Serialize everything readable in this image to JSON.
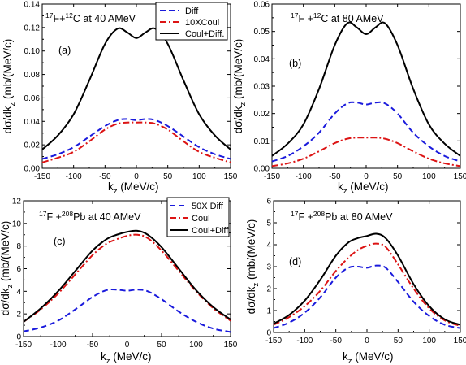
{
  "figure": {
    "ylabel": "dσ/dk",
    "ysub": "z",
    "yunit": " (mb/(MeV/c)",
    "xlabel": "k",
    "xsub": "z",
    "xunit": " (MeV/c)"
  },
  "colors": {
    "diff": "#1a1adc",
    "coul": "#dc1414",
    "sum": "#000000"
  },
  "chart_data": [
    {
      "type": "line",
      "panel_label": "(a)",
      "title_parts": {
        "a": "17",
        "b": "F+",
        "c": "12",
        "d": "C at 40 AMeV"
      },
      "xlim": [
        -150,
        150
      ],
      "ylim": [
        0,
        0.14
      ],
      "xticks": [
        -150,
        -100,
        -50,
        0,
        50,
        100,
        150
      ],
      "yticks": [
        0.0,
        0.02,
        0.04,
        0.06,
        0.08,
        0.1,
        0.12,
        0.14
      ],
      "ytick_labels": [
        "0.00",
        "0.02",
        "0.04",
        "0.06",
        "0.08",
        "0.10",
        "0.12",
        "0.14"
      ],
      "legend": "top-right",
      "x": [
        -150,
        -125,
        -100,
        -75,
        -50,
        -30,
        -15,
        0,
        15,
        30,
        50,
        75,
        100,
        125,
        150
      ],
      "series": [
        {
          "name": "Diff",
          "style": "diff",
          "values": [
            0.008,
            0.012,
            0.018,
            0.027,
            0.036,
            0.041,
            0.042,
            0.041,
            0.042,
            0.041,
            0.036,
            0.027,
            0.018,
            0.012,
            0.008
          ]
        },
        {
          "name": "10XCoul",
          "style": "coul",
          "values": [
            0.005,
            0.009,
            0.014,
            0.023,
            0.033,
            0.038,
            0.039,
            0.039,
            0.039,
            0.038,
            0.033,
            0.023,
            0.014,
            0.009,
            0.005
          ]
        },
        {
          "name": "Coul+Diff.",
          "style": "sum",
          "values": [
            0.016,
            0.028,
            0.046,
            0.075,
            0.106,
            0.119,
            0.116,
            0.111,
            0.116,
            0.119,
            0.106,
            0.075,
            0.046,
            0.028,
            0.016
          ]
        }
      ]
    },
    {
      "type": "line",
      "panel_label": "(b)",
      "title_parts": {
        "a": "17",
        "b": "F +",
        "c": "12",
        "d": "C at 80 AMeV"
      },
      "xlim": [
        -150,
        150
      ],
      "ylim": [
        0,
        0.06
      ],
      "xticks": [
        -150,
        -100,
        -50,
        0,
        50,
        100,
        150
      ],
      "yticks": [
        0.0,
        0.01,
        0.02,
        0.03,
        0.04,
        0.05,
        0.06
      ],
      "ytick_labels": [
        "0.00",
        "0.01",
        "0.02",
        "0.03",
        "0.04",
        "0.05",
        "0.06"
      ],
      "legend": "none",
      "x": [
        -150,
        -125,
        -100,
        -75,
        -50,
        -30,
        -15,
        0,
        15,
        30,
        50,
        75,
        100,
        125,
        150
      ],
      "series": [
        {
          "style": "diff",
          "values": [
            0.0025,
            0.0045,
            0.008,
            0.013,
            0.02,
            0.0237,
            0.024,
            0.0233,
            0.024,
            0.0237,
            0.02,
            0.013,
            0.008,
            0.0045,
            0.0025
          ]
        },
        {
          "style": "coul",
          "values": [
            0.0008,
            0.0018,
            0.0035,
            0.0062,
            0.0092,
            0.0108,
            0.0112,
            0.0112,
            0.0112,
            0.0108,
            0.0092,
            0.0062,
            0.0035,
            0.0018,
            0.0008
          ]
        },
        {
          "style": "sum",
          "values": [
            0.0045,
            0.009,
            0.016,
            0.029,
            0.045,
            0.053,
            0.0515,
            0.049,
            0.0515,
            0.053,
            0.045,
            0.029,
            0.016,
            0.009,
            0.0045
          ]
        }
      ]
    },
    {
      "type": "line",
      "panel_label": "(c)",
      "title_parts": {
        "a": "17",
        "b": "F +",
        "c": "208",
        "d": "Pb at 40 AMeV"
      },
      "xlim": [
        -150,
        150
      ],
      "ylim": [
        0,
        12
      ],
      "xticks": [
        -150,
        -100,
        -50,
        0,
        50,
        100,
        150
      ],
      "yticks": [
        0,
        2,
        4,
        6,
        8,
        10,
        12
      ],
      "ytick_labels": [
        "0",
        "2",
        "4",
        "6",
        "8",
        "10",
        "12"
      ],
      "legend": "top-right",
      "x": [
        -150,
        -125,
        -100,
        -75,
        -50,
        -30,
        -15,
        0,
        15,
        30,
        50,
        75,
        100,
        125,
        150
      ],
      "series": [
        {
          "name": "50X Diff",
          "style": "diff",
          "values": [
            0.45,
            0.8,
            1.4,
            2.4,
            3.5,
            4.1,
            4.15,
            4.05,
            4.15,
            4.0,
            3.3,
            2.2,
            1.3,
            0.7,
            0.4
          ]
        },
        {
          "name": "Coul",
          "style": "coul",
          "values": [
            1.3,
            2.4,
            3.8,
            5.5,
            7.2,
            8.2,
            8.6,
            8.9,
            9.0,
            8.7,
            7.6,
            5.8,
            4.0,
            2.5,
            1.4
          ]
        },
        {
          "name": "Coul+Diff.",
          "style": "sum",
          "values": [
            1.3,
            2.5,
            4.0,
            5.8,
            7.6,
            8.6,
            9.0,
            9.25,
            9.35,
            9.0,
            7.9,
            6.0,
            4.1,
            2.6,
            1.5
          ]
        }
      ]
    },
    {
      "type": "line",
      "panel_label": "(d)",
      "title_parts": {
        "a": "17",
        "b": "F +",
        "c": "208",
        "d": "Pb at 80 AMeV"
      },
      "xlim": [
        -150,
        150
      ],
      "ylim": [
        0,
        6
      ],
      "xticks": [
        -150,
        -100,
        -50,
        0,
        50,
        100,
        150
      ],
      "yticks": [
        0,
        1,
        2,
        3,
        4,
        5,
        6
      ],
      "ytick_labels": [
        "0",
        "1",
        "2",
        "3",
        "4",
        "5",
        "6"
      ],
      "legend": "none",
      "x": [
        -150,
        -125,
        -100,
        -75,
        -50,
        -30,
        -15,
        0,
        15,
        30,
        50,
        75,
        100,
        125,
        150
      ],
      "series": [
        {
          "style": "diff",
          "values": [
            0.2,
            0.45,
            0.9,
            1.6,
            2.5,
            2.95,
            3.0,
            2.95,
            3.05,
            2.95,
            2.3,
            1.4,
            0.75,
            0.35,
            0.2
          ]
        },
        {
          "style": "coul",
          "values": [
            0.35,
            0.7,
            1.2,
            1.9,
            2.8,
            3.4,
            3.75,
            3.95,
            4.05,
            3.9,
            3.1,
            2.0,
            1.1,
            0.55,
            0.3
          ]
        },
        {
          "style": "sum",
          "values": [
            0.4,
            0.8,
            1.45,
            2.4,
            3.5,
            4.1,
            4.3,
            4.4,
            4.5,
            4.3,
            3.5,
            2.2,
            1.2,
            0.6,
            0.35
          ]
        }
      ]
    }
  ]
}
